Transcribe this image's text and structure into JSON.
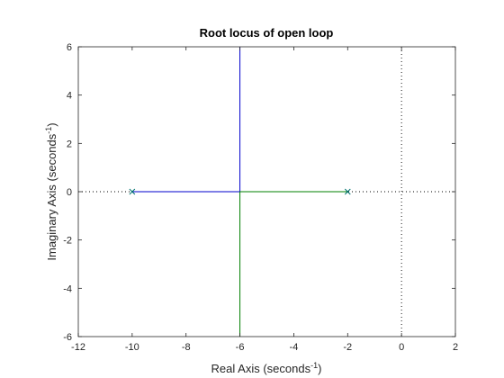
{
  "chart_data": {
    "type": "line",
    "title": "Root locus of open loop",
    "xlabel": {
      "text": "Real Axis (seconds",
      "sup": "-1",
      "close": ")"
    },
    "ylabel": {
      "text": "Imaginary Axis (seconds",
      "sup": "-1",
      "close": ")"
    },
    "xlim": [
      -12,
      2
    ],
    "ylim": [
      -6,
      6
    ],
    "xticks": [
      -12,
      -10,
      -8,
      -6,
      -4,
      -2,
      0,
      2
    ],
    "yticks": [
      -6,
      -4,
      -2,
      0,
      2,
      4,
      6
    ],
    "xtick_labels": [
      "-12",
      "-10",
      "-8",
      "-6",
      "-4",
      "-2",
      "0",
      "2"
    ],
    "ytick_labels": [
      "-6",
      "-4",
      "-2",
      "0",
      "2",
      "4",
      "6"
    ],
    "grid": false,
    "poles": [
      {
        "x": -10,
        "y": 0,
        "color": "#00736f"
      },
      {
        "x": -2,
        "y": 0,
        "color": "#00736f"
      }
    ],
    "series": [
      {
        "color": "#0000cc",
        "x": [
          -10,
          -6,
          -6
        ],
        "y": [
          0,
          0,
          6
        ]
      },
      {
        "color": "#008000",
        "x": [
          -2,
          -6,
          -6
        ],
        "y": [
          0,
          0,
          -6
        ]
      }
    ],
    "reference_lines": [
      {
        "orientation": "horizontal",
        "value": 0,
        "style": "dotted",
        "color": "#000000"
      },
      {
        "orientation": "vertical",
        "value": 0,
        "style": "dotted",
        "color": "#000000"
      }
    ]
  }
}
